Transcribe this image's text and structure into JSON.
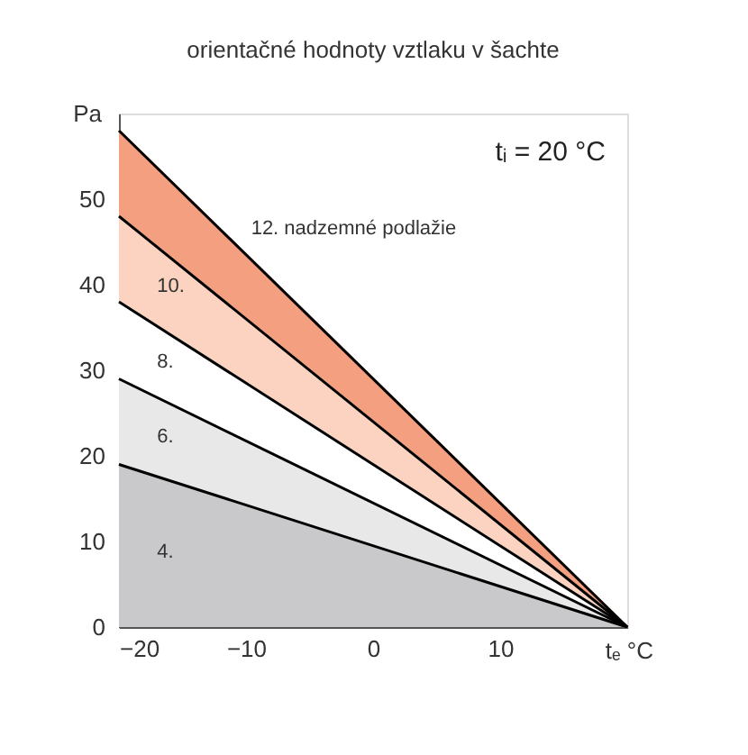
{
  "chart_data": {
    "type": "area",
    "title": "orientačné hodnoty vztlaku v šachte",
    "xlabel": "tₑ °C",
    "ylabel": "Pa",
    "stacked": true,
    "x": [
      -20,
      20
    ],
    "series": [
      {
        "name": "4.",
        "color": "#c9c9cb",
        "values": [
          19,
          0
        ]
      },
      {
        "name": "6.",
        "color": "#e8e8e8",
        "values": [
          10,
          0
        ]
      },
      {
        "name": "8.",
        "color": "#ffffff",
        "values": [
          9,
          0
        ]
      },
      {
        "name": "10.",
        "color": "#fbd3c0",
        "values": [
          10,
          0
        ]
      },
      {
        "name": "12. nadzemné podlažie",
        "color": "#f4a080",
        "values": [
          10,
          0
        ]
      }
    ],
    "xlim": [
      -20,
      20
    ],
    "xticks": [
      -20,
      -10,
      0,
      10
    ],
    "ylim": [
      0,
      60
    ],
    "yticks": [
      0,
      10,
      20,
      30,
      40,
      50
    ],
    "annotations": [
      "tᵢ = 20 °C"
    ],
    "grid": false
  }
}
